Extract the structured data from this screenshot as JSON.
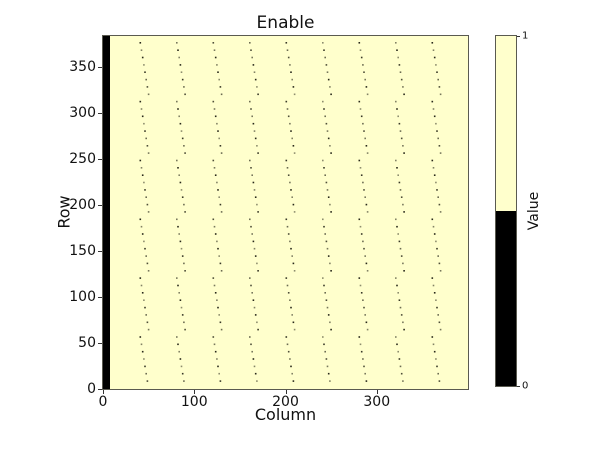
{
  "chart_data": {
    "type": "heatmap",
    "title": "Enable",
    "xlabel": "Column",
    "ylabel": "Row",
    "xlim": [
      0,
      400
    ],
    "ylim": [
      0,
      384
    ],
    "x_ticks": [
      0,
      100,
      200,
      300
    ],
    "y_ticks": [
      0,
      50,
      100,
      150,
      200,
      250,
      300,
      350
    ],
    "grid": false,
    "background_value": 1,
    "value_colors": {
      "0": "#000000",
      "1": "#ffffcc"
    },
    "disabled_regions": {
      "column_band": {
        "col_start": 0,
        "col_end": 8,
        "value": 0
      },
      "dot_lines": {
        "description": "single disabled pixels every 8 rows in every 40th column, drifting 1 column per 8 rows with a 64-row sawtooth period",
        "column_start": 40,
        "column_step": 40,
        "line_count": 9,
        "row_step": 8,
        "drift_cols_per_step": 1,
        "drift_period_rows": 64,
        "value": 0
      }
    },
    "colorbar": {
      "label": "Value",
      "ticks": [
        0,
        1
      ],
      "segments": [
        {
          "from": 0.0,
          "to": 0.5,
          "color": "#000000"
        },
        {
          "from": 0.5,
          "to": 1.0,
          "color": "#ffffcc"
        }
      ],
      "position": "right"
    }
  },
  "style": {
    "spine_color": "#5a5a50",
    "tick_color": "#333333",
    "text_color": "#111111",
    "figure_background": "#ffffff",
    "dot_color": "#1c1c10",
    "dot_opacities": [
      0.95,
      0.5,
      0.78,
      0.55,
      0.88,
      0.6,
      0.95,
      0.65
    ]
  }
}
